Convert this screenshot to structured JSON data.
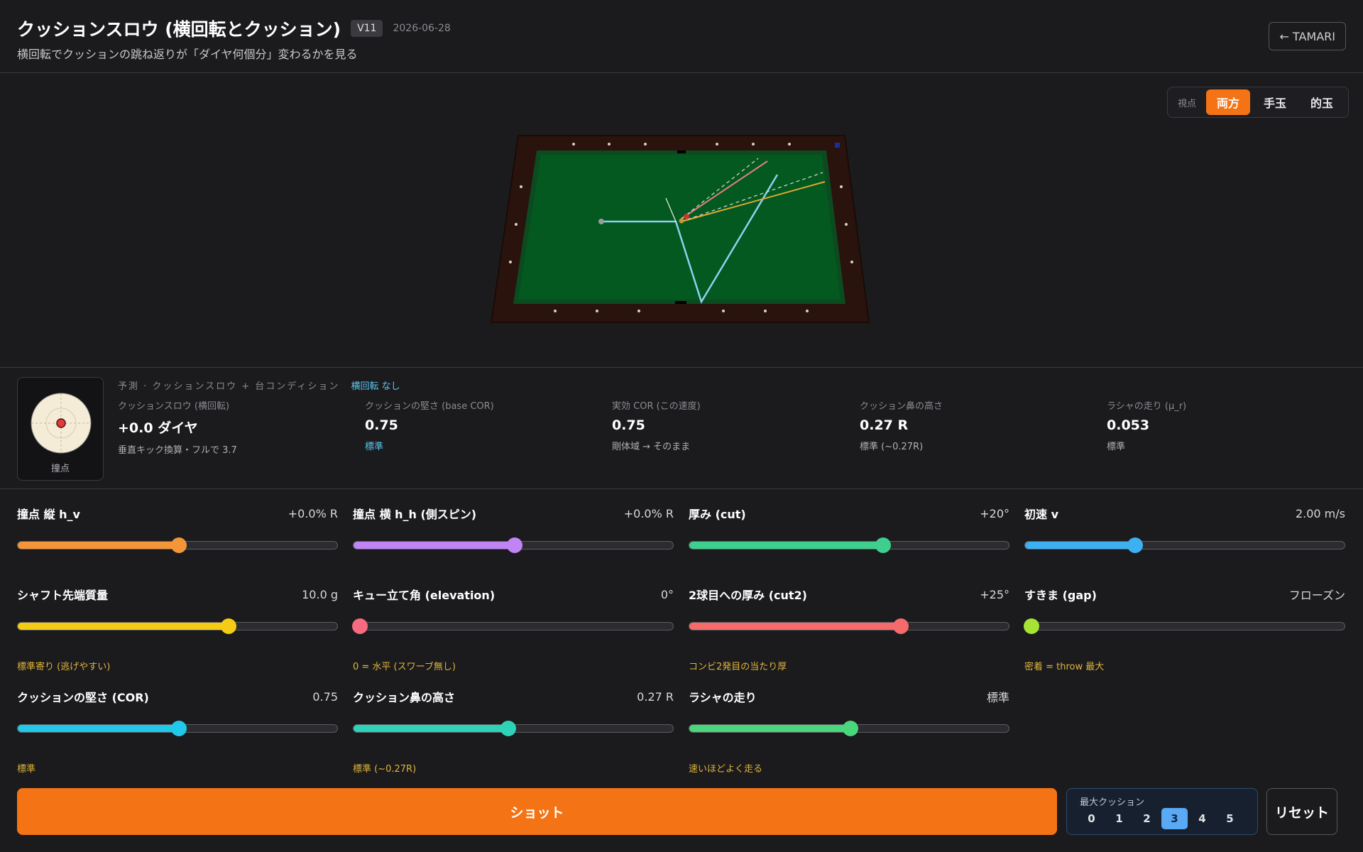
{
  "header": {
    "title": "クッションスロウ (横回転とクッション)",
    "version": "V11",
    "date": "2026-06-28",
    "subtitle": "横回転でクッションの跳ね返りが「ダイヤ何個分」変わるかを見る",
    "back_label": "← TAMARI"
  },
  "view": {
    "label": "視点",
    "options": [
      "両方",
      "手玉",
      "的玉"
    ],
    "active": "両方"
  },
  "info": {
    "cue_label": "撞点",
    "prediction_header": "予測 · クッションスロウ + 台コンディション",
    "spin_status": "横回転 なし",
    "metrics": [
      {
        "label": "クッションスロウ (横回転)",
        "value": "+0.0 ダイヤ",
        "note": "垂直キック換算・フルで 3.7"
      },
      {
        "label": "クッションの堅さ (base COR)",
        "value": "0.75",
        "note": "標準"
      },
      {
        "label": "実効 COR (この速度)",
        "value": "0.75",
        "note": "剛体域 → そのまま"
      },
      {
        "label": "クッション鼻の高さ",
        "value": "0.27 R",
        "note": "標準 (~0.27R)"
      },
      {
        "label": "ラシャの走り (μ_r)",
        "value": "0.053",
        "note": "標準"
      }
    ]
  },
  "controls": [
    {
      "label": "撞点 縦 h_v",
      "value": "+0.0% R",
      "fraction": 0.505,
      "color": "#f5953a",
      "hint": ""
    },
    {
      "label": "撞点 横 h_h (側スピン)",
      "value": "+0.0% R",
      "fraction": 0.505,
      "color": "#c084f5",
      "hint": ""
    },
    {
      "label": "厚み (cut)",
      "value": "+20°",
      "fraction": 0.607,
      "color": "#3ecf8e",
      "hint": ""
    },
    {
      "label": "初速 v",
      "value": "2.00 m/s",
      "fraction": 0.344,
      "color": "#3cb0f0",
      "hint": ""
    },
    {
      "label": "シャフト先端質量",
      "value": "10.0 g",
      "fraction": 0.66,
      "color": "#f5cc15",
      "hint": "標準寄り (逃げやすい)"
    },
    {
      "label": "キュー立て角 (elevation)",
      "value": "0°",
      "fraction": 0.02,
      "color": "#f76b80",
      "hint": "0 = 水平 (スワーブ無し)"
    },
    {
      "label": "2球目への厚み (cut2)",
      "value": "+25°",
      "fraction": 0.663,
      "color": "#f56b6b",
      "hint": "コンビ2発目の当たり厚"
    },
    {
      "label": "すきま (gap)",
      "value": "フローズン",
      "fraction": 0.02,
      "color": "#a6e335",
      "hint": "密着 = throw 最大"
    },
    {
      "label": "クッションの堅さ (COR)",
      "value": "0.75",
      "fraction": 0.505,
      "color": "#22c8e8",
      "hint": "標準"
    },
    {
      "label": "クッション鼻の高さ",
      "value": "0.27 R",
      "fraction": 0.485,
      "color": "#2ed3b7",
      "hint": "標準 (~0.27R)"
    },
    {
      "label": "ラシャの走り",
      "value": "標準",
      "fraction": 0.505,
      "color": "#4ad67a",
      "hint": "速いほどよく走る"
    }
  ],
  "bottom": {
    "shot_label": "ショット",
    "max_cushion_label": "最大クッション",
    "max_cushion_options": [
      "0",
      "1",
      "2",
      "3",
      "4",
      "5"
    ],
    "max_cushion_active": "3",
    "reset_label": "リセット"
  }
}
